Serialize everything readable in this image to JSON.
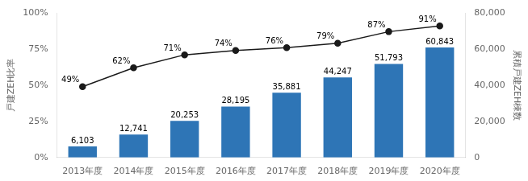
{
  "chart_data": {
    "type": "bar",
    "categories": [
      "2013年度",
      "2014年度",
      "2015年度",
      "2016年度",
      "2017年度",
      "2018年度",
      "2019年度",
      "2020年度"
    ],
    "series": [
      {
        "type": "bar",
        "color": "#2E75B6",
        "axis": "y2",
        "values": [
          6103,
          12741,
          20253,
          28195,
          35881,
          44247,
          51793,
          60843
        ],
        "value_labels": [
          "6,103",
          "12,741",
          "20,253",
          "28,195",
          "35,881",
          "44,247",
          "51,793",
          "60,843"
        ]
      },
      {
        "type": "line",
        "color": "#1a1a1a",
        "marker": "circle",
        "values": [
          49,
          62,
          71,
          74,
          76,
          79,
          87,
          91
        ],
        "value_labels": [
          "49%",
          "62%",
          "71%",
          "74%",
          "76%",
          "79%",
          "87%",
          "91%"
        ]
      }
    ],
    "ylabel": "戸建ZEH比率",
    "y2label": "累積戸建ZEH棟数",
    "ylim": [
      0,
      100
    ],
    "yticks": [
      {
        "value": 0,
        "label": "0%"
      },
      {
        "value": 25,
        "label": "25%"
      },
      {
        "value": 50,
        "label": "50%"
      },
      {
        "value": 75,
        "label": "75%"
      },
      {
        "value": 100,
        "label": "100%"
      }
    ],
    "y2lim": [
      0,
      80000
    ],
    "y2ticks": [
      0,
      {
        "value": 20000,
        "label": "20,000"
      },
      {
        "value": 40000,
        "label": "40,000"
      },
      {
        "value": 60000,
        "label": "60,000"
      },
      {
        "value": 80000,
        "label": "80,000"
      }
    ],
    "data_labels": true,
    "grid": false
  }
}
